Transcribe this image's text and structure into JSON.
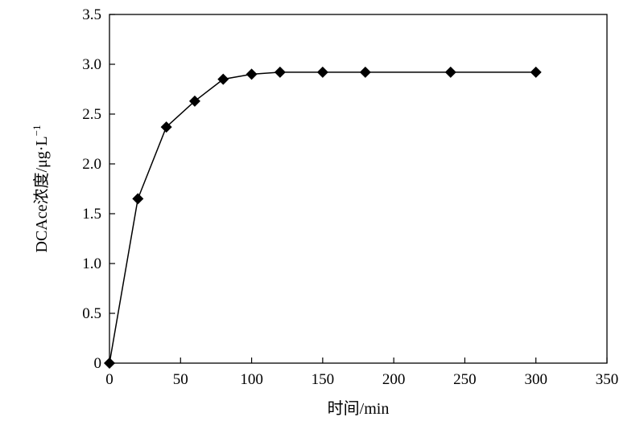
{
  "chart_data": {
    "type": "line",
    "title": "",
    "xlabel": "时间/min",
    "ylabel": "DCAce浓度/μg·L",
    "ylabel_exponent": "−1",
    "xlim": [
      0,
      350
    ],
    "ylim": [
      0,
      3.5
    ],
    "x_ticks": [
      0,
      50,
      100,
      150,
      200,
      250,
      300,
      350
    ],
    "y_ticks": [
      0,
      0.5,
      1.0,
      1.5,
      2.0,
      2.5,
      3.0,
      3.5
    ],
    "x_tick_labels": [
      "0",
      "50",
      "100",
      "150",
      "200",
      "250",
      "300",
      "350"
    ],
    "y_tick_labels": [
      "0",
      "0.5",
      "1.0",
      "1.5",
      "2.0",
      "2.5",
      "3.0",
      "3.5"
    ],
    "grid": false,
    "legend": "none",
    "series": [
      {
        "marker": "diamond",
        "color": "#000000",
        "x": [
          0,
          20,
          40,
          60,
          80,
          100,
          120,
          150,
          180,
          240,
          300
        ],
        "y": [
          0,
          1.65,
          2.37,
          2.63,
          2.85,
          2.9,
          2.92,
          2.92,
          2.92,
          2.92,
          2.92
        ]
      }
    ]
  }
}
